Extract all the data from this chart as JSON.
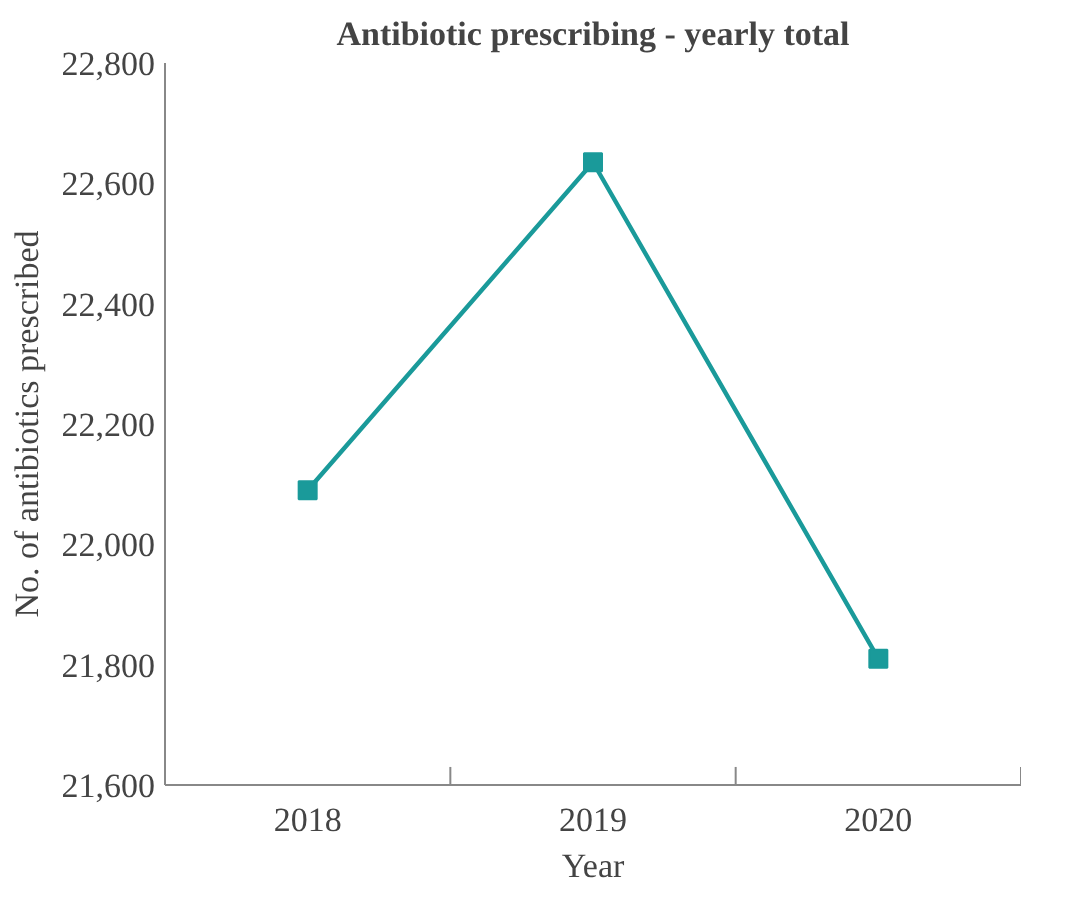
{
  "chart_data": {
    "type": "line",
    "title": "Antibiotic prescribing - yearly total",
    "xlabel": "Year",
    "ylabel": "No. of antibiotics prescribed",
    "categories": [
      "2018",
      "2019",
      "2020"
    ],
    "series": [
      {
        "color": "#1a9a9a",
        "values": [
          22090,
          22635,
          21810
        ]
      }
    ],
    "ylim": [
      21600,
      22800
    ],
    "yticks": [
      {
        "value": 21600,
        "label": "21,600"
      },
      {
        "value": 21800,
        "label": "21,800"
      },
      {
        "value": 22000,
        "label": "22,000"
      },
      {
        "value": 22200,
        "label": "22,200"
      },
      {
        "value": 22400,
        "label": "22,400"
      },
      {
        "value": 22600,
        "label": "22,600"
      },
      {
        "value": 22800,
        "label": "22,800"
      }
    ],
    "marker": "square",
    "grid": false
  }
}
